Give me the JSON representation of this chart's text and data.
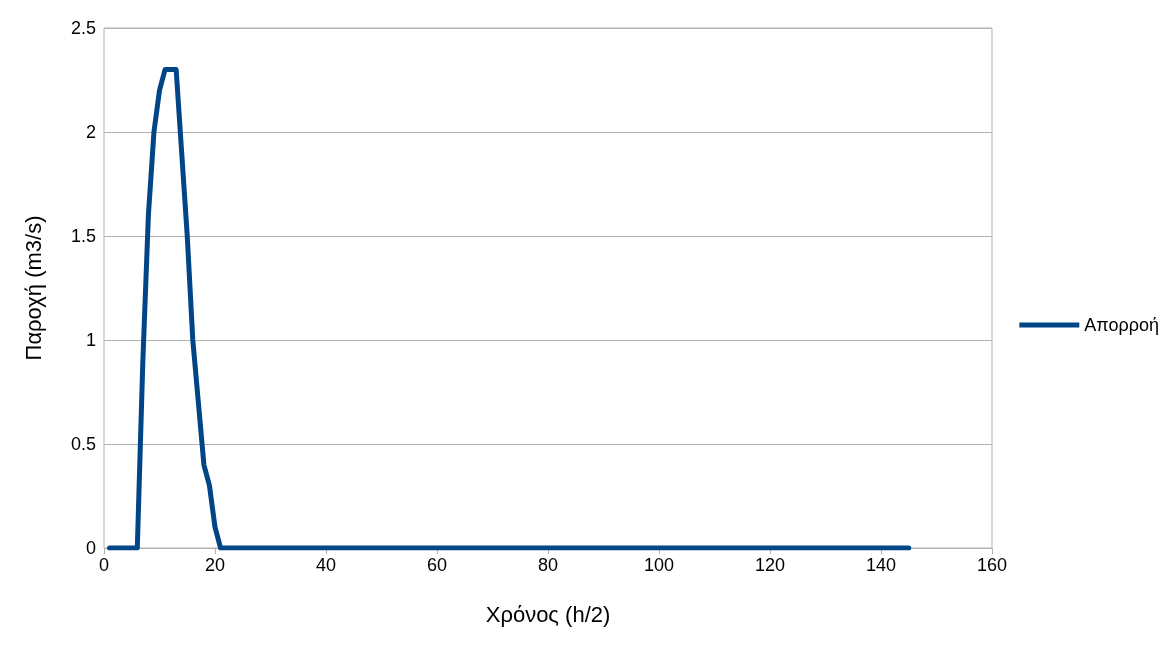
{
  "chart_data": {
    "type": "line",
    "xlabel": "Χρόνος (h/2)",
    "ylabel": "Παροχή (m3/s)",
    "x": [
      1,
      2,
      3,
      4,
      5,
      6,
      7,
      8,
      9,
      10,
      11,
      12,
      13,
      14,
      15,
      16,
      17,
      18,
      19,
      20,
      21,
      22,
      23,
      24,
      25,
      26,
      27,
      28,
      29,
      30,
      31,
      32,
      33,
      34,
      35,
      36,
      37,
      38,
      39,
      40,
      41,
      42,
      43,
      44,
      45,
      46,
      47,
      48,
      49,
      50,
      51,
      52,
      53,
      54,
      55,
      56,
      57,
      58,
      59,
      60,
      61,
      62,
      63,
      64,
      65,
      66,
      67,
      68,
      69,
      70,
      71,
      72,
      73,
      74,
      75,
      76,
      77,
      78,
      79,
      80,
      81,
      82,
      83,
      84,
      85,
      86,
      87,
      88,
      89,
      90,
      91,
      92,
      93,
      94,
      95,
      96,
      97,
      98,
      99,
      100,
      101,
      102,
      103,
      104,
      105,
      106,
      107,
      108,
      109,
      110,
      111,
      112,
      113,
      114,
      115,
      116,
      117,
      118,
      119,
      120,
      121,
      122,
      123,
      124,
      125,
      126,
      127,
      128,
      129,
      130,
      131,
      132,
      133,
      134,
      135,
      136,
      137,
      138,
      139,
      140,
      141,
      142,
      143,
      144,
      145
    ],
    "series": [
      {
        "name": "Απορροή",
        "color": "#004586",
        "values": [
          0,
          0,
          0,
          0,
          0,
          0,
          0.9,
          1.6,
          2.0,
          2.2,
          2.3,
          2.3,
          2.3,
          1.9,
          1.5,
          1.0,
          0.7,
          0.4,
          0.3,
          0.1,
          0,
          0,
          0,
          0,
          0,
          0,
          0,
          0,
          0,
          0,
          0,
          0,
          0,
          0,
          0,
          0,
          0,
          0,
          0,
          0,
          0,
          0,
          0,
          0,
          0,
          0,
          0,
          0,
          0,
          0,
          0,
          0,
          0,
          0,
          0,
          0,
          0,
          0,
          0,
          0,
          0,
          0,
          0,
          0,
          0,
          0,
          0,
          0,
          0,
          0,
          0,
          0,
          0,
          0,
          0,
          0,
          0,
          0,
          0,
          0,
          0,
          0,
          0,
          0,
          0,
          0,
          0,
          0,
          0,
          0,
          0,
          0,
          0,
          0,
          0,
          0,
          0,
          0,
          0,
          0,
          0,
          0,
          0,
          0,
          0,
          0,
          0,
          0,
          0,
          0,
          0,
          0,
          0,
          0,
          0,
          0,
          0,
          0,
          0,
          0,
          0,
          0,
          0,
          0,
          0,
          0,
          0,
          0,
          0,
          0,
          0,
          0,
          0,
          0,
          0,
          0,
          0,
          0,
          0,
          0,
          0,
          0,
          0,
          0,
          0
        ]
      }
    ],
    "xlim": [
      0,
      160
    ],
    "xticks": [
      0,
      20,
      40,
      60,
      80,
      100,
      120,
      140,
      160
    ],
    "ylim": [
      0,
      2.5
    ],
    "yticks": [
      0,
      0.5,
      1,
      1.5,
      2,
      2.5
    ],
    "grid": "y",
    "legend": "right",
    "marker": "none",
    "line_style": "solid"
  }
}
